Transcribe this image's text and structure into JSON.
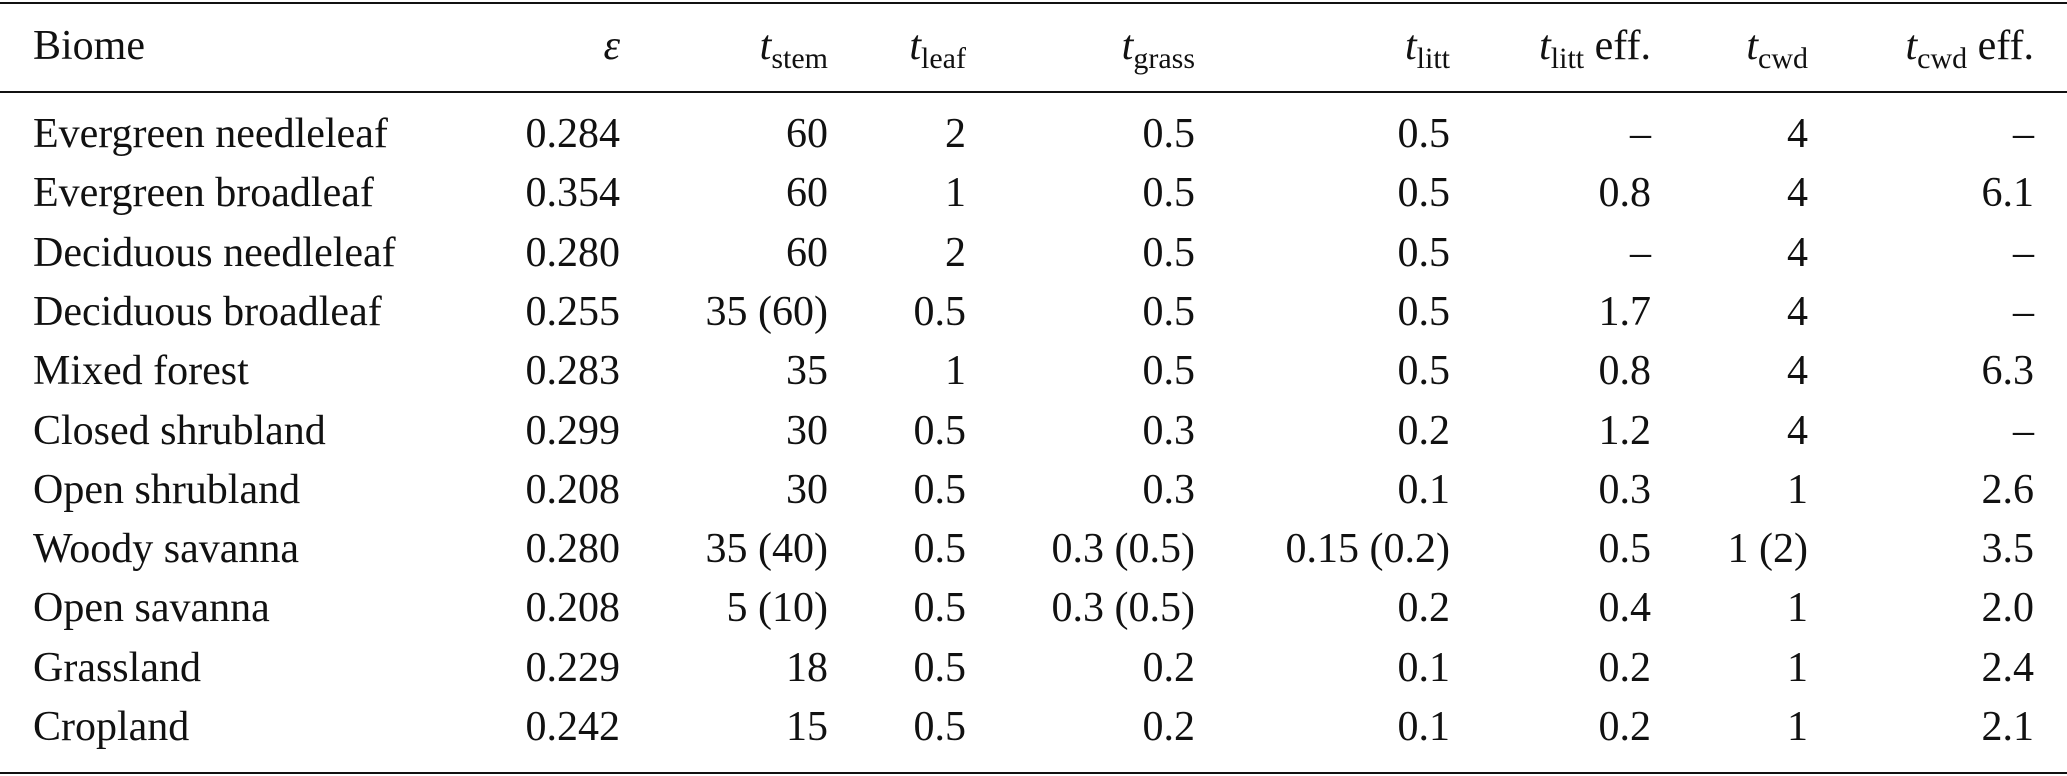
{
  "table": {
    "columns": [
      {
        "text": "Biome"
      },
      {
        "symbol": "ε"
      },
      {
        "symbol": "t",
        "sub": "stem"
      },
      {
        "symbol": "t",
        "sub": "leaf"
      },
      {
        "symbol": "t",
        "sub": "grass"
      },
      {
        "symbol": "t",
        "sub": "litt"
      },
      {
        "symbol": "t",
        "sub": "litt",
        "suffix": "eff."
      },
      {
        "symbol": "t",
        "sub": "cwd"
      },
      {
        "symbol": "t",
        "sub": "cwd",
        "suffix": "eff."
      }
    ],
    "rows": [
      [
        "Evergreen needleleaf",
        "0.284",
        "60",
        "2",
        "0.5",
        "0.5",
        "–",
        "4",
        "–"
      ],
      [
        "Evergreen broadleaf",
        "0.354",
        "60",
        "1",
        "0.5",
        "0.5",
        "0.8",
        "4",
        "6.1"
      ],
      [
        "Deciduous needleleaf",
        "0.280",
        "60",
        "2",
        "0.5",
        "0.5",
        "–",
        "4",
        "–"
      ],
      [
        "Deciduous broadleaf",
        "0.255",
        "35 (60)",
        "0.5",
        "0.5",
        "0.5",
        "1.7",
        "4",
        "–"
      ],
      [
        "Mixed forest",
        "0.283",
        "35",
        "1",
        "0.5",
        "0.5",
        "0.8",
        "4",
        "6.3"
      ],
      [
        "Closed shrubland",
        "0.299",
        "30",
        "0.5",
        "0.3",
        "0.2",
        "1.2",
        "4",
        "–"
      ],
      [
        "Open shrubland",
        "0.208",
        "30",
        "0.5",
        "0.3",
        "0.1",
        "0.3",
        "1",
        "2.6"
      ],
      [
        "Woody savanna",
        "0.280",
        "35 (40)",
        "0.5",
        "0.3 (0.5)",
        "0.15 (0.2)",
        "0.5",
        "1 (2)",
        "3.5"
      ],
      [
        "Open savanna",
        "0.208",
        "5 (10)",
        "0.5",
        "0.3 (0.5)",
        "0.2",
        "0.4",
        "1",
        "2.0"
      ],
      [
        "Grassland",
        "0.229",
        "18",
        "0.5",
        "0.2",
        "0.1",
        "0.2",
        "1",
        "2.4"
      ],
      [
        "Cropland",
        "0.242",
        "15",
        "0.5",
        "0.2",
        "0.1",
        "0.2",
        "1",
        "2.1"
      ]
    ]
  }
}
